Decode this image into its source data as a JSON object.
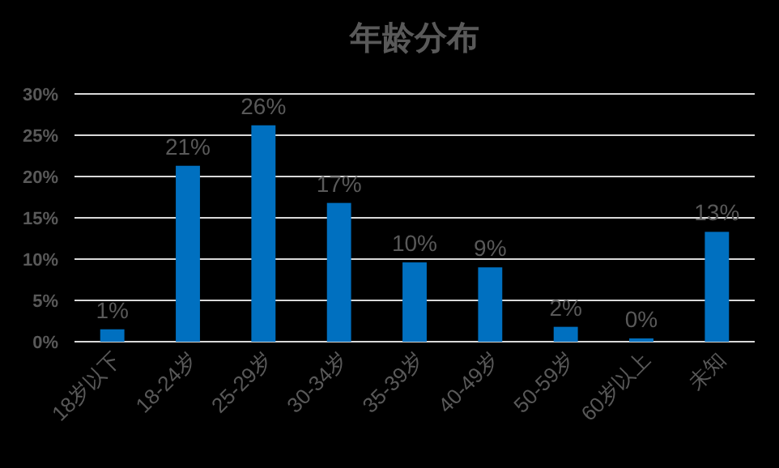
{
  "chart_data": {
    "type": "bar",
    "title": "年龄分布",
    "categories": [
      "18岁以下",
      "18-24岁",
      "25-29岁",
      "30-34岁",
      "35-39岁",
      "40-49岁",
      "50-59岁",
      "60岁以上",
      "未知"
    ],
    "values": [
      1.5,
      21.3,
      26.2,
      16.8,
      9.6,
      9.0,
      1.8,
      0.4,
      13.3
    ],
    "value_labels": [
      "1%",
      "21%",
      "26%",
      "17%",
      "10%",
      "9%",
      "2%",
      "0%",
      "13%"
    ],
    "color": "#0070c0",
    "ylim": [
      0,
      30
    ],
    "yticks": [
      {
        "value": 0,
        "label": "0%"
      },
      {
        "value": 5,
        "label": "5%"
      },
      {
        "value": 10,
        "label": "10%"
      },
      {
        "value": 15,
        "label": "15%"
      },
      {
        "value": 20,
        "label": "20%"
      },
      {
        "value": 25,
        "label": "25%"
      },
      {
        "value": 30,
        "label": "30%"
      }
    ],
    "grid": "y"
  }
}
